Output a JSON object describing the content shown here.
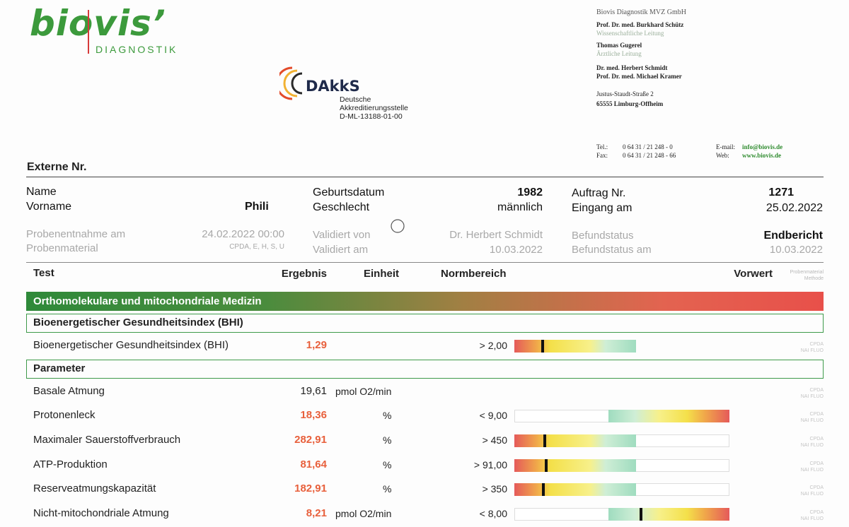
{
  "logo": {
    "brand": "biovis’",
    "sub": "DIAGNOSTIK"
  },
  "dakks": {
    "name": "DAkkS",
    "line1": "Deutsche",
    "line2": "Akkreditierungsstelle",
    "line3": "D-ML-13188-01-00"
  },
  "company": {
    "name": "Biovis Diagnostik MVZ GmbH",
    "person1": "Prof. Dr. med. Burkhard Schütz",
    "role1": "Wissenschaftliche Leitung",
    "person2": "Thomas Gugerel",
    "role2": "Ärztliche Leitung",
    "person3": "Dr. med. Herbert Schmidt",
    "person4": "Prof. Dr. med. Michael Kramer",
    "street": "Justus-Staudt-Straße 2",
    "city": "65555 Limburg-Offheim",
    "tel_label": "Tel.:",
    "tel": "0 64 31 / 21 248 - 0",
    "fax_label": "Fax:",
    "fax": "0 64 31 / 21 248 - 66",
    "email_label": "E-mail:",
    "email": "info@biovis.de",
    "web_label": "Web:",
    "web": "www.biovis.de"
  },
  "externe_nr": "Externe Nr.",
  "patient": {
    "name_label": "Name",
    "vorname_label": "Vorname",
    "vorname": "Phili",
    "geburtsdatum_label": "Geburtsdatum",
    "geburtsdatum": "1982",
    "geschlecht_label": "Geschlecht",
    "geschlecht": "männlich",
    "auftrag_label": "Auftrag Nr.",
    "auftrag": "1271",
    "eingang_label": "Eingang am",
    "eingang": "25.02.2022",
    "probenentnahme_label": "Probenentnahme am",
    "probenentnahme": "24.02.2022 00:00",
    "probenmaterial_label": "Probenmaterial",
    "probenmaterial": "CPDA, E, H, S, U",
    "validiert_von_label": "Validiert von",
    "validiert_von": "Dr. Herbert Schmidt",
    "validiert_am_label": "Validiert am",
    "validiert_am": "10.03.2022",
    "befundstatus_label": "Befundstatus",
    "befundstatus": "Endbericht",
    "befundstatus_am_label": "Befundstatus am",
    "befundstatus_am": "10.03.2022"
  },
  "table_header": {
    "test": "Test",
    "ergebnis": "Ergebnis",
    "einheit": "Einheit",
    "normbereich": "Normbereich",
    "vorwert": "Vorwert",
    "methode1": "Probenmaterial",
    "methode2": "Methode"
  },
  "section_main": "Orthomolekulare und mitochondriale Medizin",
  "section_bhi": "Bioenergetischer Gesundheitsindex (BHI)",
  "section_param": "Parameter",
  "colors": {
    "red": "#e8603c",
    "green": "#3e9a4a"
  },
  "rows": [
    {
      "name": "Bioenergetischer Gesundheitsindex (BHI)",
      "value": "1,29",
      "unit": "",
      "norm": "> 2,00",
      "m1": "CPDA",
      "m2": "NAI FLUO",
      "flag": true
    },
    {
      "name": "Basale Atmung",
      "value": "19,61",
      "unit": "pmol O2/min",
      "norm": "",
      "m1": "CPDA",
      "m2": "NAI FLUO",
      "flag": false
    },
    {
      "name": "Protonenleck",
      "value": "18,36",
      "unit": "%",
      "norm": "< 9,00",
      "m1": "CPDA",
      "m2": "NAI FLUO",
      "flag": true
    },
    {
      "name": "Maximaler Sauerstoffverbrauch",
      "value": "282,91",
      "unit": "%",
      "norm": "> 450",
      "m1": "CPDA",
      "m2": "NAI FLUO",
      "flag": true
    },
    {
      "name": "ATP-Produktion",
      "value": "81,64",
      "unit": "%",
      "norm": "> 91,00",
      "m1": "CPDA",
      "m2": "NAI FLUO",
      "flag": true
    },
    {
      "name": "Reserveatmungskapazität",
      "value": "182,91",
      "unit": "%",
      "norm": "> 350",
      "m1": "CPDA",
      "m2": "NAI FLUO",
      "flag": true
    },
    {
      "name": "Nicht-mitochondriale Atmung",
      "value": "8,21",
      "unit": "pmol O2/min",
      "norm": "< 8,00",
      "m1": "CPDA",
      "m2": "NAI FLUO",
      "flag": true
    }
  ]
}
